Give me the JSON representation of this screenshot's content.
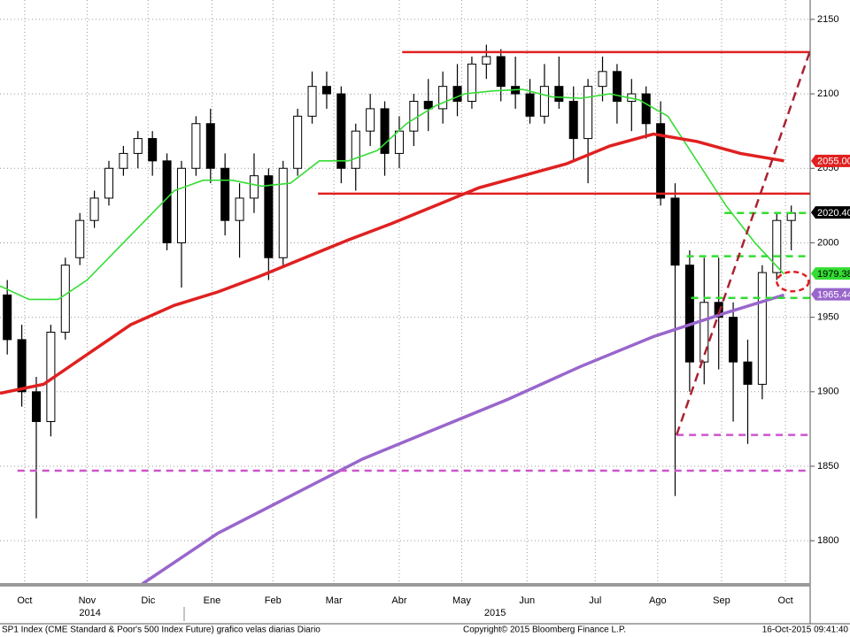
{
  "chart_data": {
    "type": "candlestick",
    "x": [
      0.5,
      1.5,
      2.5,
      3.5,
      4.5,
      5.5,
      6.5,
      7.5,
      8.5,
      9.5,
      10.5,
      11.5,
      12.5,
      13.5,
      14.5,
      15.5,
      16.5,
      17.5,
      18.5,
      19.5,
      20.5,
      21.5,
      22.5,
      23.5,
      24.5,
      25.5,
      26.5,
      27.5,
      28.5,
      29.5,
      30.5,
      31.5,
      32.5,
      33.5,
      34.5,
      35.5,
      36.5,
      37.5,
      38.5,
      39.5,
      40.5,
      41.5,
      42.5,
      43.5,
      44.5,
      45.5,
      46.5,
      47.5,
      48.5,
      49.5,
      50.5,
      51.5,
      52.5,
      53.5,
      54.5
    ],
    "open": [
      1965,
      1935,
      1900,
      1880,
      1940,
      1990,
      2015,
      2030,
      2050,
      2060,
      2070,
      2055,
      2000,
      2050,
      2080,
      2050,
      2015,
      2030,
      2045,
      1990,
      2050,
      2085,
      2105,
      2100,
      2050,
      2075,
      2090,
      2060,
      2075,
      2095,
      2090,
      2105,
      2095,
      2120,
      2125,
      2105,
      2100,
      2085,
      2105,
      2095,
      2070,
      2105,
      2115,
      2095,
      2100,
      2080,
      2030,
      1985,
      1920,
      1960,
      1950,
      1920,
      1905,
      1980,
      2015
    ],
    "high": [
      1975,
      1945,
      1910,
      1945,
      1990,
      2020,
      2035,
      2055,
      2065,
      2075,
      2075,
      2060,
      2055,
      2085,
      2090,
      2060,
      2040,
      2060,
      2050,
      2055,
      2090,
      2115,
      2115,
      2105,
      2080,
      2100,
      2095,
      2085,
      2100,
      2110,
      2115,
      2120,
      2125,
      2133,
      2130,
      2125,
      2110,
      2120,
      2125,
      2105,
      2110,
      2125,
      2120,
      2110,
      2105,
      2095,
      2040,
      1995,
      1990,
      1990,
      1960,
      1935,
      1985,
      2020,
      2025
    ],
    "low": [
      1925,
      1890,
      1815,
      1870,
      1935,
      1985,
      2010,
      2025,
      2045,
      2050,
      2045,
      1995,
      1970,
      2045,
      2040,
      2005,
      1990,
      2020,
      1975,
      1985,
      2045,
      2080,
      2090,
      2040,
      2035,
      2065,
      2045,
      2050,
      2065,
      2075,
      2080,
      2085,
      2090,
      2110,
      2095,
      2090,
      2080,
      2080,
      2090,
      2055,
      2040,
      2095,
      2080,
      2075,
      2070,
      2025,
      1830,
      1900,
      1905,
      1915,
      1880,
      1865,
      1895,
      1975,
      1995
    ],
    "close": [
      1935,
      1900,
      1880,
      1940,
      1985,
      2015,
      2030,
      2050,
      2060,
      2070,
      2055,
      2000,
      2050,
      2080,
      2050,
      2015,
      2030,
      2045,
      1990,
      2050,
      2085,
      2105,
      2100,
      2050,
      2075,
      2090,
      2060,
      2075,
      2095,
      2090,
      2105,
      2095,
      2120,
      2125,
      2105,
      2100,
      2085,
      2105,
      2095,
      2070,
      2105,
      2115,
      2095,
      2100,
      2080,
      2030,
      1985,
      1920,
      1960,
      1950,
      1920,
      1905,
      1980,
      2015,
      2020
    ],
    "candle_color": "#000000",
    "xlim": [
      0,
      55.8
    ],
    "ylim": [
      1771,
      2163
    ],
    "yticks": [
      1800,
      1850,
      1900,
      1950,
      2000,
      2050,
      2100,
      2150
    ],
    "xticks": [
      {
        "value": 1.7,
        "label": "Oct"
      },
      {
        "value": 6.0,
        "label": "Nov"
      },
      {
        "value": 10.2,
        "label": "Dic"
      },
      {
        "value": 14.6,
        "label": "Ene"
      },
      {
        "value": 18.8,
        "label": "Feb"
      },
      {
        "value": 23.0,
        "label": "Mar"
      },
      {
        "value": 27.5,
        "label": "Abr"
      },
      {
        "value": 31.8,
        "label": "May"
      },
      {
        "value": 36.3,
        "label": "Jun"
      },
      {
        "value": 41.0,
        "label": "Jul"
      },
      {
        "value": 45.3,
        "label": "Ago"
      },
      {
        "value": 49.7,
        "label": "Sep"
      },
      {
        "value": 54.1,
        "label": "Oct"
      }
    ],
    "year_labels": [
      {
        "value": 6.2,
        "label": "2014"
      },
      {
        "value": 34.1,
        "label": "2015"
      }
    ],
    "grid": true,
    "series": [
      {
        "color": "#33dd33",
        "x": [
          0,
          2,
          4,
          6,
          8,
          10,
          12,
          14,
          16,
          18,
          20,
          22,
          24,
          26,
          28,
          30,
          32,
          34,
          36,
          38,
          40,
          42,
          44,
          46,
          48,
          50,
          52,
          54
        ],
        "values": [
          1971,
          1962,
          1962,
          1975,
          1995,
          2015,
          2035,
          2042,
          2042,
          2038,
          2040,
          2055,
          2055,
          2062,
          2080,
          2092,
          2100,
          2102,
          2103,
          2098,
          2097,
          2100,
          2096,
          2085,
          2055,
          2025,
          2000,
          1979
        ]
      },
      {
        "color": "#e02020",
        "x": [
          0,
          3,
          6,
          9,
          12,
          15,
          18,
          21,
          24,
          27,
          30,
          33,
          36,
          39,
          42,
          45,
          48,
          51,
          54
        ],
        "values": [
          1899,
          1905,
          1925,
          1945,
          1958,
          1967,
          1978,
          1990,
          2002,
          2013,
          2025,
          2037,
          2045,
          2053,
          2065,
          2073,
          2068,
          2060,
          2055
        ]
      },
      {
        "color": "#9966cc",
        "x": [
          9.8,
          15,
          20,
          25,
          30,
          35,
          40,
          45,
          50,
          54
        ],
        "values": [
          1771,
          1805,
          1830,
          1855,
          1875,
          1895,
          1917,
          1937,
          1953,
          1965
        ]
      }
    ],
    "levels": [
      {
        "y": 2128,
        "x": [
          27.7,
          55.8
        ],
        "color": "#e02020",
        "dash": false
      },
      {
        "y": 2033,
        "x": [
          21.9,
          55.8
        ],
        "color": "#e02020",
        "dash": false
      },
      {
        "y": 1847,
        "x": [
          1.2,
          55.8
        ],
        "color": "#cc55cc",
        "dash": true
      },
      {
        "y": 1871,
        "x": [
          46.6,
          55.8
        ],
        "color": "#cc55cc",
        "dash": true
      },
      {
        "y": 2020,
        "x": [
          49.9,
          55.8
        ],
        "color": "#33dd33",
        "dash": true
      },
      {
        "y": 1991,
        "x": [
          47.3,
          55.8
        ],
        "color": "#33dd33",
        "dash": true
      },
      {
        "y": 1963,
        "x": [
          47.6,
          55.8
        ],
        "color": "#33dd33",
        "dash": true
      }
    ],
    "trendline": {
      "x": [
        46.6,
        55.8
      ],
      "y": [
        1871,
        2129
      ],
      "color": "#aa2233"
    },
    "circle_marker": {
      "x": 54.6,
      "y": 1974,
      "color": "#e02020"
    },
    "price_tags": [
      {
        "value": 2055,
        "label": "2055.00",
        "color": "#e02020",
        "text_color": "#ffffff"
      },
      {
        "value": 2020.4,
        "label": "2020.40",
        "color": "#000000",
        "text_color": "#ffffff"
      },
      {
        "value": 1979.38,
        "label": "1979.38",
        "color": "#33dd33",
        "text_color": "#000000"
      },
      {
        "value": 1965.44,
        "label": "1965.44",
        "color": "#9966cc",
        "text_color": "#ffffff"
      }
    ]
  },
  "footer": {
    "left": "SP1 Index (CME Standard & Poor's 500 Index Future) grafico velas diarias  Diario",
    "center": "Copyright© 2015 Bloomberg Finance L.P.",
    "right": "16-Oct-2015 09:41:40"
  }
}
